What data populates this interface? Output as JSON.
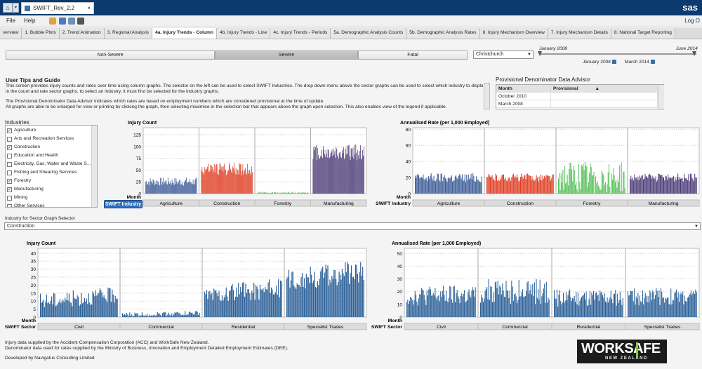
{
  "window": {
    "tab_title": "SWIFT_Rev_2.2",
    "brand": "sas"
  },
  "menu": [
    "File",
    "Help"
  ],
  "menu_right": "Log O",
  "tabs": [
    "verview",
    "1. Bubble Plots",
    "2. Trend Animation",
    "3. Regional Analysis",
    "4a. Injury Trends - Column",
    "4b. Injury Trends - Line",
    "4c. Injury Trends - Periods",
    "5a. Demographic Analysis Counts",
    "5b. Demographic Analysis Rates",
    "6. Injury Mechanism Overview",
    "7. Injury Mechanism Details",
    "8. National Target Reporting"
  ],
  "severity": [
    "Non-Severe",
    "Severe",
    "Fatal"
  ],
  "region": {
    "value": "Christchurch"
  },
  "date_range": {
    "start_label": "January 2008",
    "end_label": "June 2014",
    "start_value": "January 2008",
    "end_value": "March 2014"
  },
  "tips": {
    "title": "User Tips and Guide",
    "lines": [
      "This screen provides injury counts and rates over time using column graphs.  The selector on the left can be used to select SWIFT Industries. The drop down menu above the sector graphs can be used to select which industry to display",
      "in the count and rate sector graphs, to select an industry, it must first be selected for the industry graphs.",
      "The Provisional Denominator Data Advisor indicates which rates are based on employment numbers which are considered provisional at the time of update.",
      "All graphs are able to be enlarged for view or printing by clicking the graph, then selecting maximise in the selection bar that appears above the graph upon selection.  This also enables view of the legend if applicable."
    ]
  },
  "denominator": {
    "title": "Provisional Denominator Data Advisor",
    "headers": [
      "Month",
      "Provisional"
    ],
    "rows": [
      "October 2010",
      "March 2008"
    ]
  },
  "industries": {
    "title": "Industries",
    "items": [
      {
        "label": "Agriculture",
        "checked": true
      },
      {
        "label": "Arts and Recreation Services",
        "checked": false
      },
      {
        "label": "Construction",
        "checked": true
      },
      {
        "label": "Education and Health",
        "checked": false
      },
      {
        "label": "Electricity, Gas, Water and Waste S...",
        "checked": false
      },
      {
        "label": "Fishing and Shearing Services",
        "checked": false
      },
      {
        "label": "Forestry",
        "checked": true
      },
      {
        "label": "Manufacturing",
        "checked": true
      },
      {
        "label": "Mining",
        "checked": false
      },
      {
        "label": "Other Services",
        "checked": false
      }
    ]
  },
  "swift_industry_button": "SWIFT Industry",
  "sector_selector": {
    "label": "Industry for Sector Graph Selector",
    "value": "Construction"
  },
  "chart_data": [
    {
      "type": "bar",
      "title": "Injury Count",
      "xlabel": "Month",
      "group_label": "SWIFT Industry",
      "yticks": [
        0,
        25,
        50,
        75,
        100,
        125
      ],
      "ylim": [
        0,
        140
      ],
      "panels": [
        {
          "name": "Agriculture",
          "color": "#3c5a96",
          "mean": 29,
          "spread": 9
        },
        {
          "name": "Construction",
          "color": "#de3b1f",
          "mean": 58,
          "spread": 14
        },
        {
          "name": "Forestry",
          "color": "#58c25a",
          "mean": 3,
          "spread": 2
        },
        {
          "name": "Manufacturing",
          "color": "#4a3a76",
          "mean": 95,
          "spread": 18
        }
      ]
    },
    {
      "type": "bar",
      "title": "Annualised Rate (per 1,000 Employed)",
      "xlabel": "Month",
      "group_label": "SWIFT Industry",
      "yticks": [
        0,
        20,
        40,
        60,
        80
      ],
      "ylim": [
        0,
        82
      ],
      "panels": [
        {
          "name": "Agriculture",
          "color": "#3c5a96",
          "mean": 22,
          "spread": 6
        },
        {
          "name": "Construction",
          "color": "#de3b1f",
          "mean": 22,
          "spread": 5
        },
        {
          "name": "Forestry",
          "color": "#58c25a",
          "mean": 28,
          "spread": 20
        },
        {
          "name": "Manufacturing",
          "color": "#4a3a76",
          "mean": 22,
          "spread": 5
        }
      ]
    },
    {
      "type": "bar",
      "title": "Injury Count",
      "xlabel": "Month",
      "group_label": "SWIFT Sector",
      "yticks": [
        0,
        5,
        10,
        15,
        20,
        25,
        30,
        35,
        40
      ],
      "ylim": [
        0,
        43
      ],
      "panels": [
        {
          "name": "Civil",
          "color": "#2a5f97",
          "mean": 12,
          "spread": 5
        },
        {
          "name": "Commercial",
          "color": "#2a5f97",
          "mean": 2,
          "spread": 1.5
        },
        {
          "name": "Residential",
          "color": "#2a5f97",
          "mean": 16,
          "spread": 6
        },
        {
          "name": "Specialist Trades",
          "color": "#2a5f97",
          "mean": 26,
          "spread": 7
        }
      ]
    },
    {
      "type": "bar",
      "title": "Annualised Rate (per 1,000 Employed)",
      "xlabel": "Month",
      "group_label": "SWIFT Sector",
      "yticks": [
        0,
        10,
        20,
        30,
        40,
        50
      ],
      "ylim": [
        0,
        54
      ],
      "panels": [
        {
          "name": "Civil",
          "color": "#2a5f97",
          "mean": 20,
          "spread": 8
        },
        {
          "name": "Commercial",
          "color": "#2a5f97",
          "mean": 24,
          "spread": 10
        },
        {
          "name": "Residential",
          "color": "#2a5f97",
          "mean": 18,
          "spread": 7
        },
        {
          "name": "Specialist Trades",
          "color": "#2a5f97",
          "mean": 19,
          "spread": 7
        }
      ]
    }
  ],
  "footer": {
    "line1": "Injury data supplied by the Accident Compensation Corporation (ACC) and WorkSafe New Zealand.",
    "line2": "Denominator data used for rates supplied by the Ministry of Business, Innovation and Employment Detailed Employment Estimates (DEE).",
    "line3": "Developed by Navigatus Consulting Limited"
  },
  "logo": {
    "main": "WORKSAFE",
    "sub": "NEW ZEALAND"
  }
}
